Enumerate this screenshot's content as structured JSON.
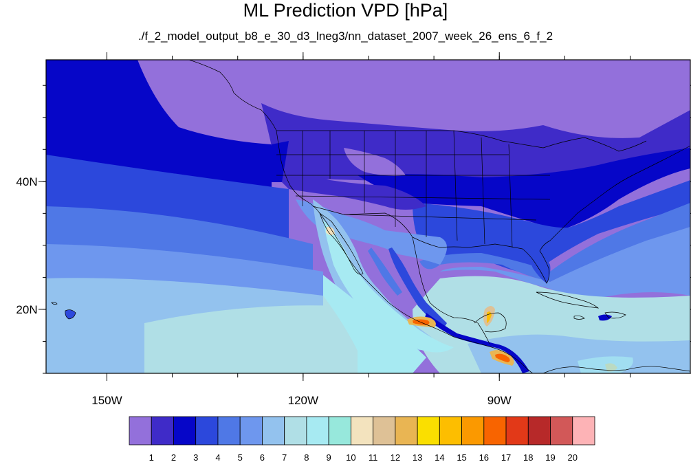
{
  "title": "ML Prediction VPD [hPa]",
  "subtitle": "./f_2_model_output_b8_e_30_d3_lneg3/nn_dataset_2007_week_26_ens_6_f_2",
  "chart_data": {
    "type": "heatmap",
    "title": "ML Prediction VPD [hPa]",
    "subtitle": "./f_2_model_output_b8_e_30_d3_lneg3/nn_dataset_2007_week_26_ens_6_f_2",
    "x_ticks": [
      {
        "value": -150,
        "label": "150W"
      },
      {
        "value": -120,
        "label": "120W"
      },
      {
        "value": -90,
        "label": "90W"
      }
    ],
    "y_ticks": [
      {
        "value": 40,
        "label": "40N"
      },
      {
        "value": 20,
        "label": "20N"
      }
    ],
    "lon_range": [
      -159.3,
      -60.8
    ],
    "lat_range": [
      10,
      59
    ],
    "colorbar": {
      "levels": [
        "1",
        "2",
        "3",
        "4",
        "5",
        "6",
        "7",
        "8",
        "9",
        "10",
        "11",
        "12",
        "13",
        "14",
        "15",
        "16",
        "17",
        "18",
        "19",
        "20"
      ],
      "colors": [
        "#9370db",
        "#3f2bc8",
        "#0606c8",
        "#2c48dc",
        "#4f78e6",
        "#6e97ee",
        "#93c2ee",
        "#b0dfe6",
        "#a7eaf2",
        "#97e8dc",
        "#f3e3be",
        "#dec196",
        "#e9b553",
        "#fadf00",
        "#fdbe00",
        "#fb9900",
        "#f86400",
        "#e23918",
        "#b72929",
        "#d25858",
        "#fdb3b6"
      ]
    }
  }
}
